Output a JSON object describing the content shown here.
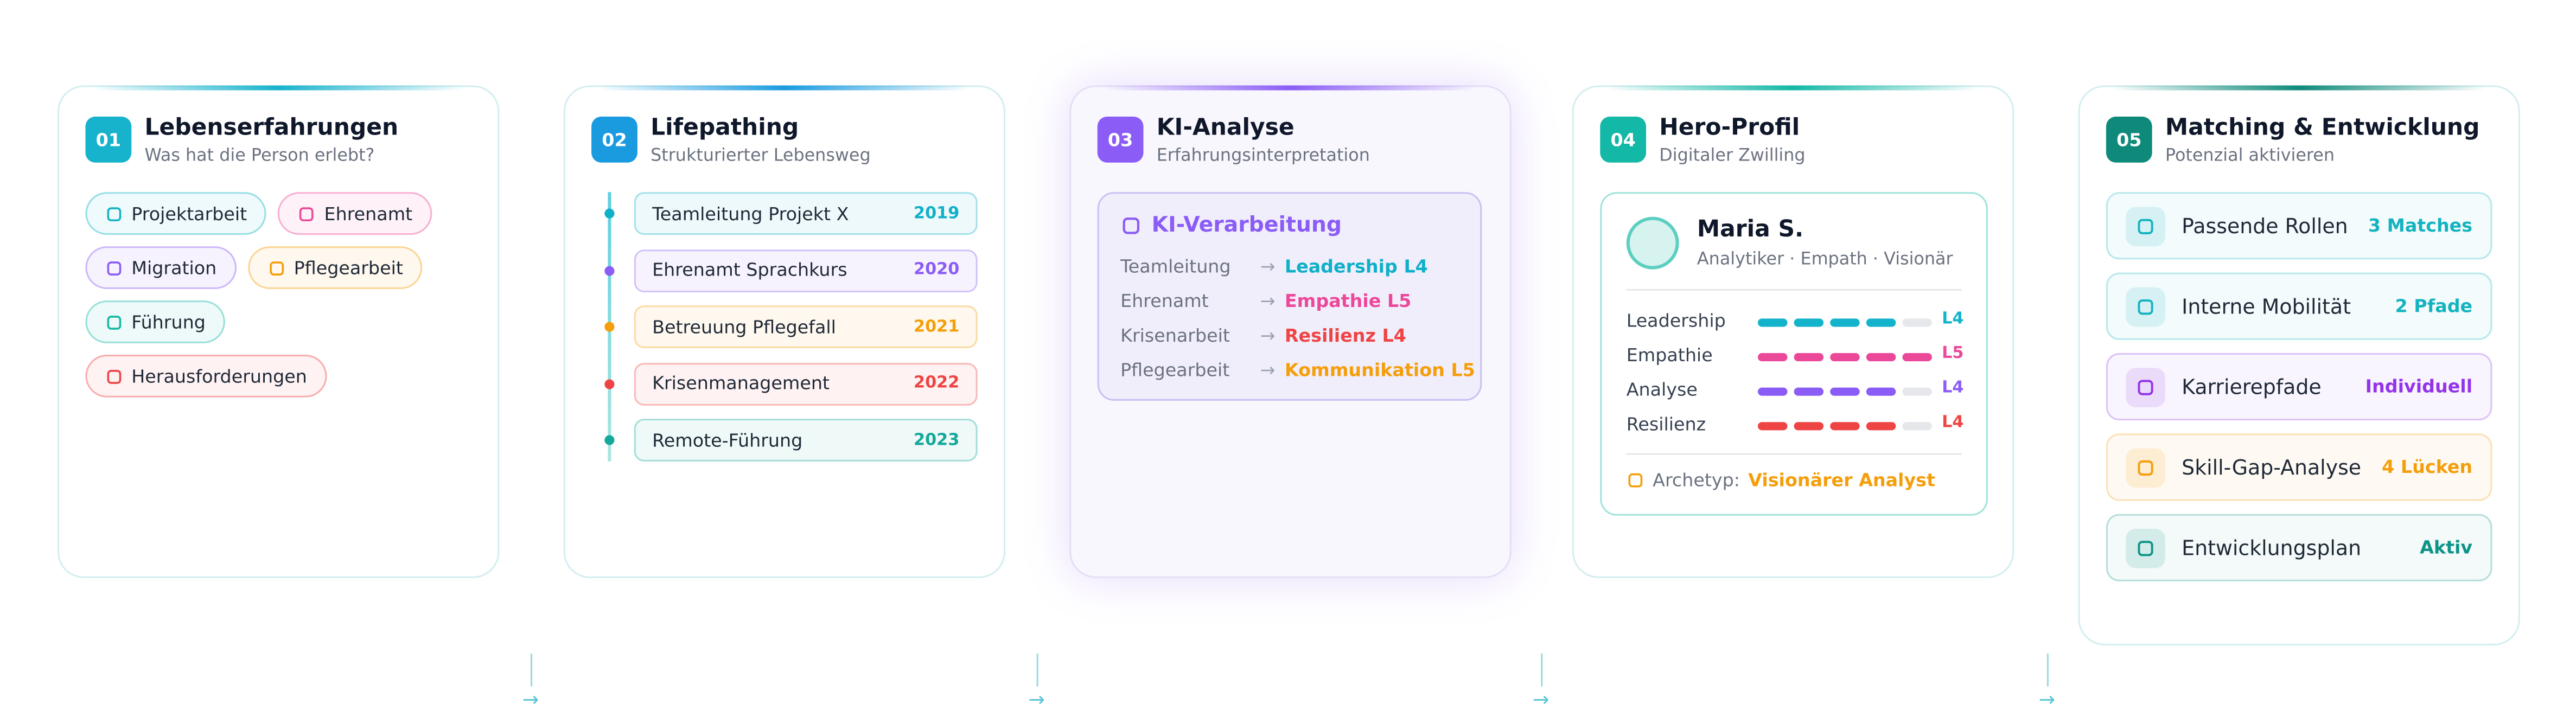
{
  "cards": [
    {
      "number": "01",
      "title": "Lebenserfahrungen",
      "subtitle": "Was hat die Person erlebt?",
      "color": "#17b3cc",
      "tags": [
        {
          "label": "Projektarbeit",
          "color": "#14b3c6"
        },
        {
          "label": "Ehrenamt",
          "color": "#ec4899"
        },
        {
          "label": "Migration",
          "color": "#8b5cf6"
        },
        {
          "label": "Pflegearbeit",
          "color": "#f59e0b"
        },
        {
          "label": "Führung",
          "color": "#14b8a6"
        },
        {
          "label": "Herausforderungen",
          "color": "#ef4444"
        }
      ]
    },
    {
      "number": "02",
      "title": "Lifepathing",
      "subtitle": "Strukturierter Lebensweg",
      "color": "#1a9be0",
      "timeline": [
        {
          "label": "Teamleitung Projekt X",
          "year": "2019",
          "color": "#0fb0c8"
        },
        {
          "label": "Ehrenamt Sprachkurs",
          "year": "2020",
          "color": "#8b5cf6"
        },
        {
          "label": "Betreuung Pflegefall",
          "year": "2021",
          "color": "#f59e0b"
        },
        {
          "label": "Krisenmanagement",
          "year": "2022",
          "color": "#ef4444"
        },
        {
          "label": "Remote-Führung",
          "year": "2023",
          "color": "#14a89a"
        }
      ]
    },
    {
      "number": "03",
      "title": "KI-Analyse",
      "subtitle": "Erfahrungsinterpretation",
      "color": "#8b5cf6",
      "panel_title": "KI-Verarbeitung",
      "mappings": [
        {
          "from": "Teamleitung",
          "to": "Leadership L4",
          "color": "#0fb0c8"
        },
        {
          "from": "Ehrenamt",
          "to": "Empathie L5",
          "color": "#ec4899"
        },
        {
          "from": "Krisenarbeit",
          "to": "Resilienz L4",
          "color": "#ef4444"
        },
        {
          "from": "Pflegearbeit",
          "to": "Kommunikation L5",
          "color": "#f59e0b"
        }
      ]
    },
    {
      "number": "04",
      "title": "Hero-Profil",
      "subtitle": "Digitaler Zwilling",
      "color": "#14b8a6",
      "name": "Maria S.",
      "roles": "Analytiker · Empath · Visionär",
      "skills": [
        {
          "name": "Leadership",
          "level": 4,
          "label": "L4",
          "color": "#14b3cc"
        },
        {
          "name": "Empathie",
          "level": 5,
          "label": "L5",
          "color": "#ec4899"
        },
        {
          "name": "Analyse",
          "level": 4,
          "label": "L4",
          "color": "#8b5cf6"
        },
        {
          "name": "Resilienz",
          "level": 4,
          "label": "L4",
          "color": "#ef4444"
        }
      ],
      "archetype_label": "Archetyp:",
      "archetype": "Visionärer Analyst"
    },
    {
      "number": "05",
      "title": "Matching & Entwicklung",
      "subtitle": "Potenzial aktivieren",
      "color": "#0f8a7a",
      "items": [
        {
          "label": "Passende Rollen",
          "value": "3 Matches",
          "color": "#14b3c0"
        },
        {
          "label": "Interne Mobilität",
          "value": "2 Pfade",
          "color": "#14b3c0"
        },
        {
          "label": "Karrierepfade",
          "value": "Individuell",
          "color": "#9333ea"
        },
        {
          "label": "Skill-Gap-Analyse",
          "value": "4 Lücken",
          "color": "#f59e0b"
        },
        {
          "label": "Entwicklungsplan",
          "value": "Aktiv",
          "color": "#0d9488"
        }
      ]
    }
  ]
}
